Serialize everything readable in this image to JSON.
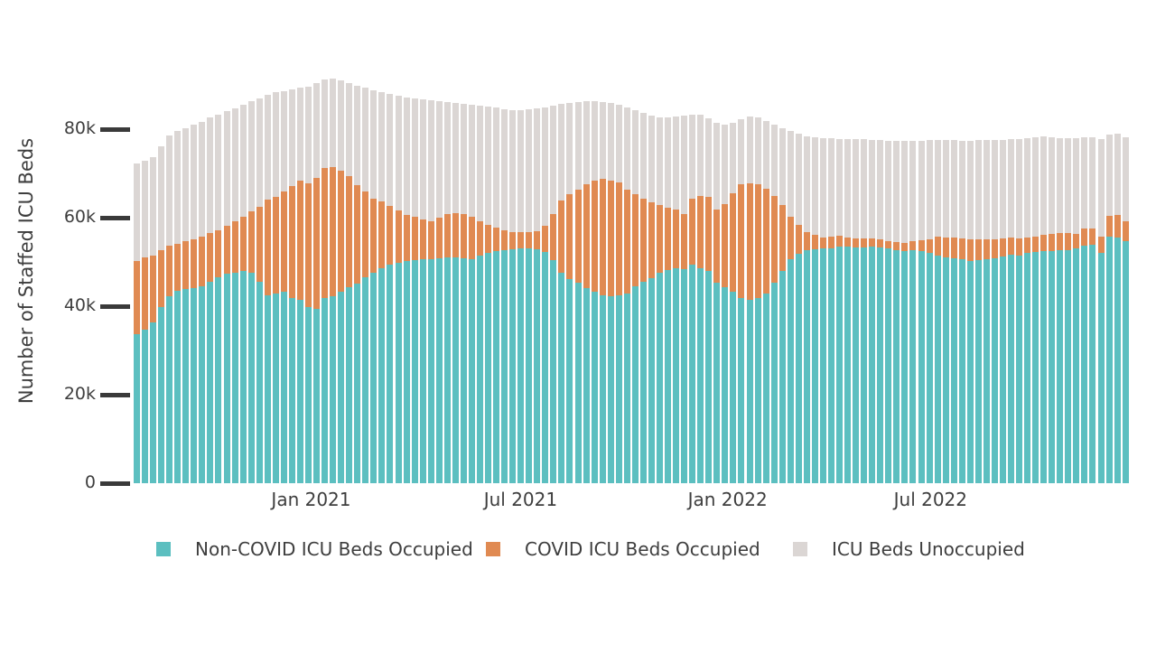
{
  "figure": {
    "background": "#ffffff",
    "y_axis": {
      "title": "Number of Staffed ICU Beds",
      "tick_labels": [
        "0",
        "20k",
        "40k",
        "60k",
        "80k"
      ],
      "tick_values_k": [
        0,
        20,
        40,
        60,
        80
      ]
    },
    "x_axis": {
      "tick_labels": [
        "Jan 2021",
        "Jul 2021",
        "Jan 2022",
        "Jul 2022"
      ]
    },
    "legend": [
      {
        "label": "Non-COVID ICU Beds Occupied",
        "color": "#5cbfc0"
      },
      {
        "label": "COVID ICU Beds Occupied",
        "color": "#e08a52"
      },
      {
        "label": "ICU Beds Unoccupied",
        "color": "#dbd6d4"
      }
    ]
  },
  "chart_data": {
    "type": "bar",
    "stacked": true,
    "orientation": "vertical",
    "title": "",
    "xlabel": "",
    "ylabel": "Number of Staffed ICU Beds",
    "values_unit": "thousands of ICU beds",
    "ylim_k": [
      0,
      93.9
    ],
    "x_description": "122 weekly bars spanning approximately August 2020 through early December 2022",
    "x_tick_labels": [
      "Jan 2021",
      "Jul 2021",
      "Jan 2022",
      "Jul 2022"
    ],
    "x_tick_bar_positions": [
      21.3,
      46.9,
      72.2,
      97.0
    ],
    "grid": false,
    "legend_position": "bottom",
    "series": [
      {
        "name": "Non-COVID ICU Beds Occupied",
        "color": "#5cbfc0",
        "values": [
          33.7,
          34.7,
          36.4,
          39.8,
          42.2,
          43.5,
          43.9,
          44.1,
          44.5,
          45.5,
          46.5,
          47.3,
          47.6,
          48.0,
          47.6,
          45.5,
          42.4,
          42.9,
          43.3,
          41.8,
          41.4,
          39.8,
          39.4,
          41.8,
          42.2,
          43.3,
          44.3,
          45.1,
          46.5,
          47.5,
          48.5,
          49.3,
          49.8,
          50.2,
          50.4,
          50.6,
          50.6,
          50.8,
          51.0,
          51.0,
          50.8,
          50.6,
          51.5,
          52.0,
          52.4,
          52.6,
          52.8,
          53.0,
          53.1,
          52.8,
          52.2,
          50.4,
          47.6,
          46.2,
          45.3,
          44.0,
          43.3,
          42.4,
          42.2,
          42.5,
          42.9,
          44.5,
          45.5,
          46.3,
          47.6,
          48.2,
          48.6,
          48.3,
          49.4,
          48.6,
          48.0,
          45.3,
          44.3,
          43.3,
          41.8,
          41.4,
          41.8,
          42.9,
          45.3,
          48.0,
          50.6,
          51.8,
          52.6,
          52.9,
          53.1,
          53.1,
          53.5,
          53.4,
          53.3,
          53.3,
          53.4,
          53.2,
          53.0,
          52.7,
          52.5,
          52.6,
          52.4,
          52.0,
          51.4,
          51.0,
          50.8,
          50.6,
          50.3,
          50.4,
          50.6,
          50.8,
          51.2,
          51.6,
          51.4,
          52.0,
          52.2,
          52.4,
          52.5,
          52.7,
          52.7,
          53.1,
          53.7,
          53.9,
          52.0,
          55.7,
          55.5,
          54.7
        ]
      },
      {
        "name": "COVID ICU Beds Occupied",
        "color": "#e08a52",
        "values": [
          16.6,
          16.3,
          15.1,
          12.9,
          11.5,
          10.6,
          10.8,
          11.0,
          11.2,
          11.0,
          10.6,
          10.9,
          11.6,
          12.3,
          13.9,
          17.0,
          21.6,
          21.8,
          22.7,
          25.4,
          26.9,
          28.0,
          29.5,
          29.4,
          29.2,
          27.3,
          25.1,
          22.2,
          19.4,
          16.8,
          15.2,
          13.4,
          11.8,
          10.4,
          9.8,
          9.0,
          8.6,
          9.2,
          9.8,
          10.0,
          10.0,
          9.6,
          7.7,
          6.4,
          5.4,
          4.6,
          4.0,
          3.7,
          3.7,
          4.2,
          6.0,
          10.4,
          16.3,
          19.2,
          21.0,
          23.6,
          25.1,
          26.4,
          26.2,
          25.5,
          23.4,
          20.8,
          18.8,
          17.2,
          15.3,
          14.0,
          13.2,
          12.5,
          14.9,
          16.3,
          16.7,
          16.5,
          18.7,
          22.2,
          25.7,
          26.4,
          25.7,
          23.6,
          19.6,
          14.8,
          9.6,
          6.6,
          4.2,
          3.2,
          2.4,
          2.6,
          2.4,
          2.2,
          2.1,
          2.0,
          2.0,
          2.0,
          1.8,
          1.8,
          1.8,
          2.1,
          2.6,
          3.2,
          4.3,
          4.5,
          4.7,
          4.7,
          4.9,
          4.7,
          4.5,
          4.4,
          4.1,
          3.9,
          3.9,
          3.6,
          3.5,
          3.7,
          3.8,
          3.8,
          3.8,
          3.2,
          3.9,
          3.7,
          3.7,
          4.7,
          5.1,
          4.5
        ]
      },
      {
        "name": "ICU Beds Unoccupied",
        "color": "#dbd6d4",
        "values": [
          21.9,
          21.9,
          22.2,
          23.4,
          24.8,
          25.5,
          25.6,
          25.9,
          25.9,
          26.1,
          26.2,
          25.9,
          25.6,
          25.2,
          24.8,
          24.5,
          23.7,
          23.6,
          22.6,
          21.8,
          21.0,
          21.8,
          21.4,
          20.0,
          20.1,
          20.5,
          21.0,
          22.5,
          23.4,
          24.5,
          24.6,
          25.2,
          25.9,
          26.6,
          26.8,
          27.2,
          27.3,
          26.3,
          25.4,
          25.0,
          25.0,
          25.4,
          26.2,
          26.7,
          27.0,
          27.3,
          27.5,
          27.6,
          27.7,
          27.7,
          26.8,
          24.5,
          21.8,
          20.6,
          19.9,
          18.7,
          17.9,
          17.3,
          17.5,
          17.5,
          18.6,
          18.9,
          19.3,
          19.5,
          19.8,
          20.5,
          21.0,
          22.2,
          18.9,
          18.4,
          17.7,
          19.6,
          18.0,
          15.9,
          14.8,
          15.1,
          15.2,
          15.3,
          16.1,
          17.4,
          19.4,
          20.6,
          21.6,
          22.0,
          22.5,
          22.2,
          21.9,
          22.2,
          22.3,
          22.4,
          22.2,
          22.3,
          22.6,
          22.8,
          23.0,
          22.7,
          22.4,
          22.3,
          21.9,
          22.1,
          22.0,
          22.1,
          22.2,
          22.4,
          22.4,
          22.3,
          22.3,
          22.2,
          22.5,
          22.4,
          22.5,
          22.3,
          21.9,
          21.5,
          21.4,
          21.7,
          20.6,
          20.5,
          22.1,
          18.4,
          18.3,
          19.0
        ]
      }
    ]
  }
}
